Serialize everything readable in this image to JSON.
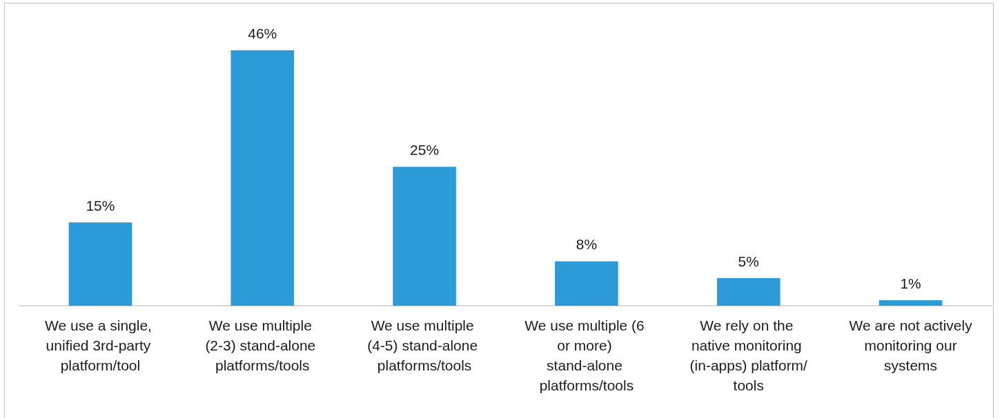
{
  "chart_data": {
    "type": "bar",
    "categories": [
      "We use a single, unified 3rd-party platform/tool",
      "We use multiple (2-3) stand-alone platforms/tools",
      "We use multiple (4-5) stand-alone platforms/tools",
      "We use multiple (6 or more) stand-alone platforms/tools",
      "We rely on the native monitoring (in-apps) platform/tools",
      "We are not actively monitoring our systems"
    ],
    "values": [
      15,
      46,
      25,
      8,
      5,
      1
    ],
    "value_labels": [
      "15%",
      "46%",
      "25%",
      "8%",
      "5%",
      "1%"
    ],
    "color": "#2b9cd8",
    "tick_labels": "x"
  }
}
